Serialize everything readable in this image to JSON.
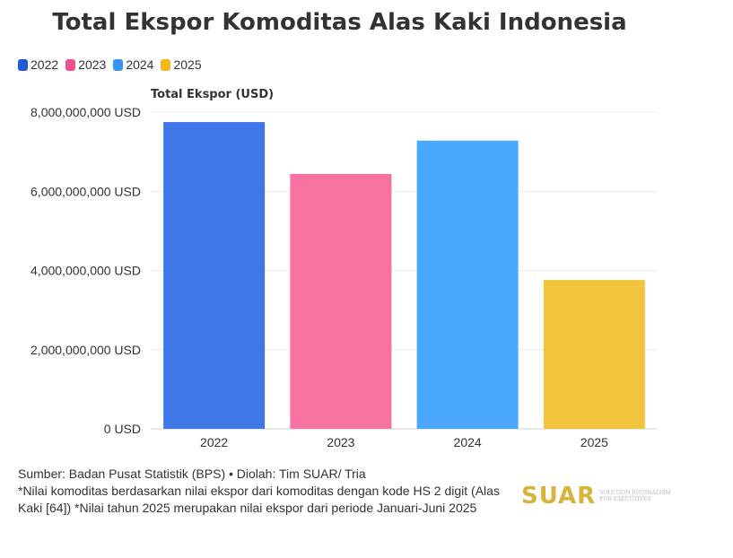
{
  "chart_data": {
    "type": "bar",
    "title": "Total Ekspor Komoditas Alas Kaki Indonesia",
    "ylabel": "Total Ekspor (USD)",
    "xlabel": "",
    "categories": [
      "2022",
      "2023",
      "2024",
      "2025"
    ],
    "values": [
      7750000000,
      6440000000,
      7280000000,
      3760000000
    ],
    "colors": [
      "#3F77E6",
      "#F572A2",
      "#4BA8FF",
      "#F2C43D"
    ],
    "yticks": [
      "0 USD",
      "2,000,000,000 USD",
      "4,000,000,000 USD",
      "6,000,000,000 USD",
      "8,000,000,000 USD"
    ],
    "ytick_values": [
      0,
      2000000000,
      4000000000,
      6000000000,
      8000000000
    ],
    "ylim": [
      0,
      8000000000
    ],
    "grid": true,
    "legend": {
      "position": "top-left",
      "entries": [
        "2022",
        "2023",
        "2024",
        "2025"
      ],
      "colors": [
        "#1F5BD9",
        "#F0508B",
        "#3597F5",
        "#F2B818"
      ]
    }
  },
  "footer": {
    "source": "Sumber: Badan Pusat Statistik (BPS) • Diolah: Tim SUAR/ Tria",
    "note": "*Nilai komoditas berdasarkan nilai ekspor dari komoditas dengan kode HS 2 digit (Alas Kaki [64]) *Nilai tahun 2025 merupakan nilai ekspor dari periode Januari-Juni 2025"
  },
  "logo": {
    "word": "SUAR",
    "tagline": "SOLUTION JOURNALISM FOR EXECUTIVES"
  }
}
